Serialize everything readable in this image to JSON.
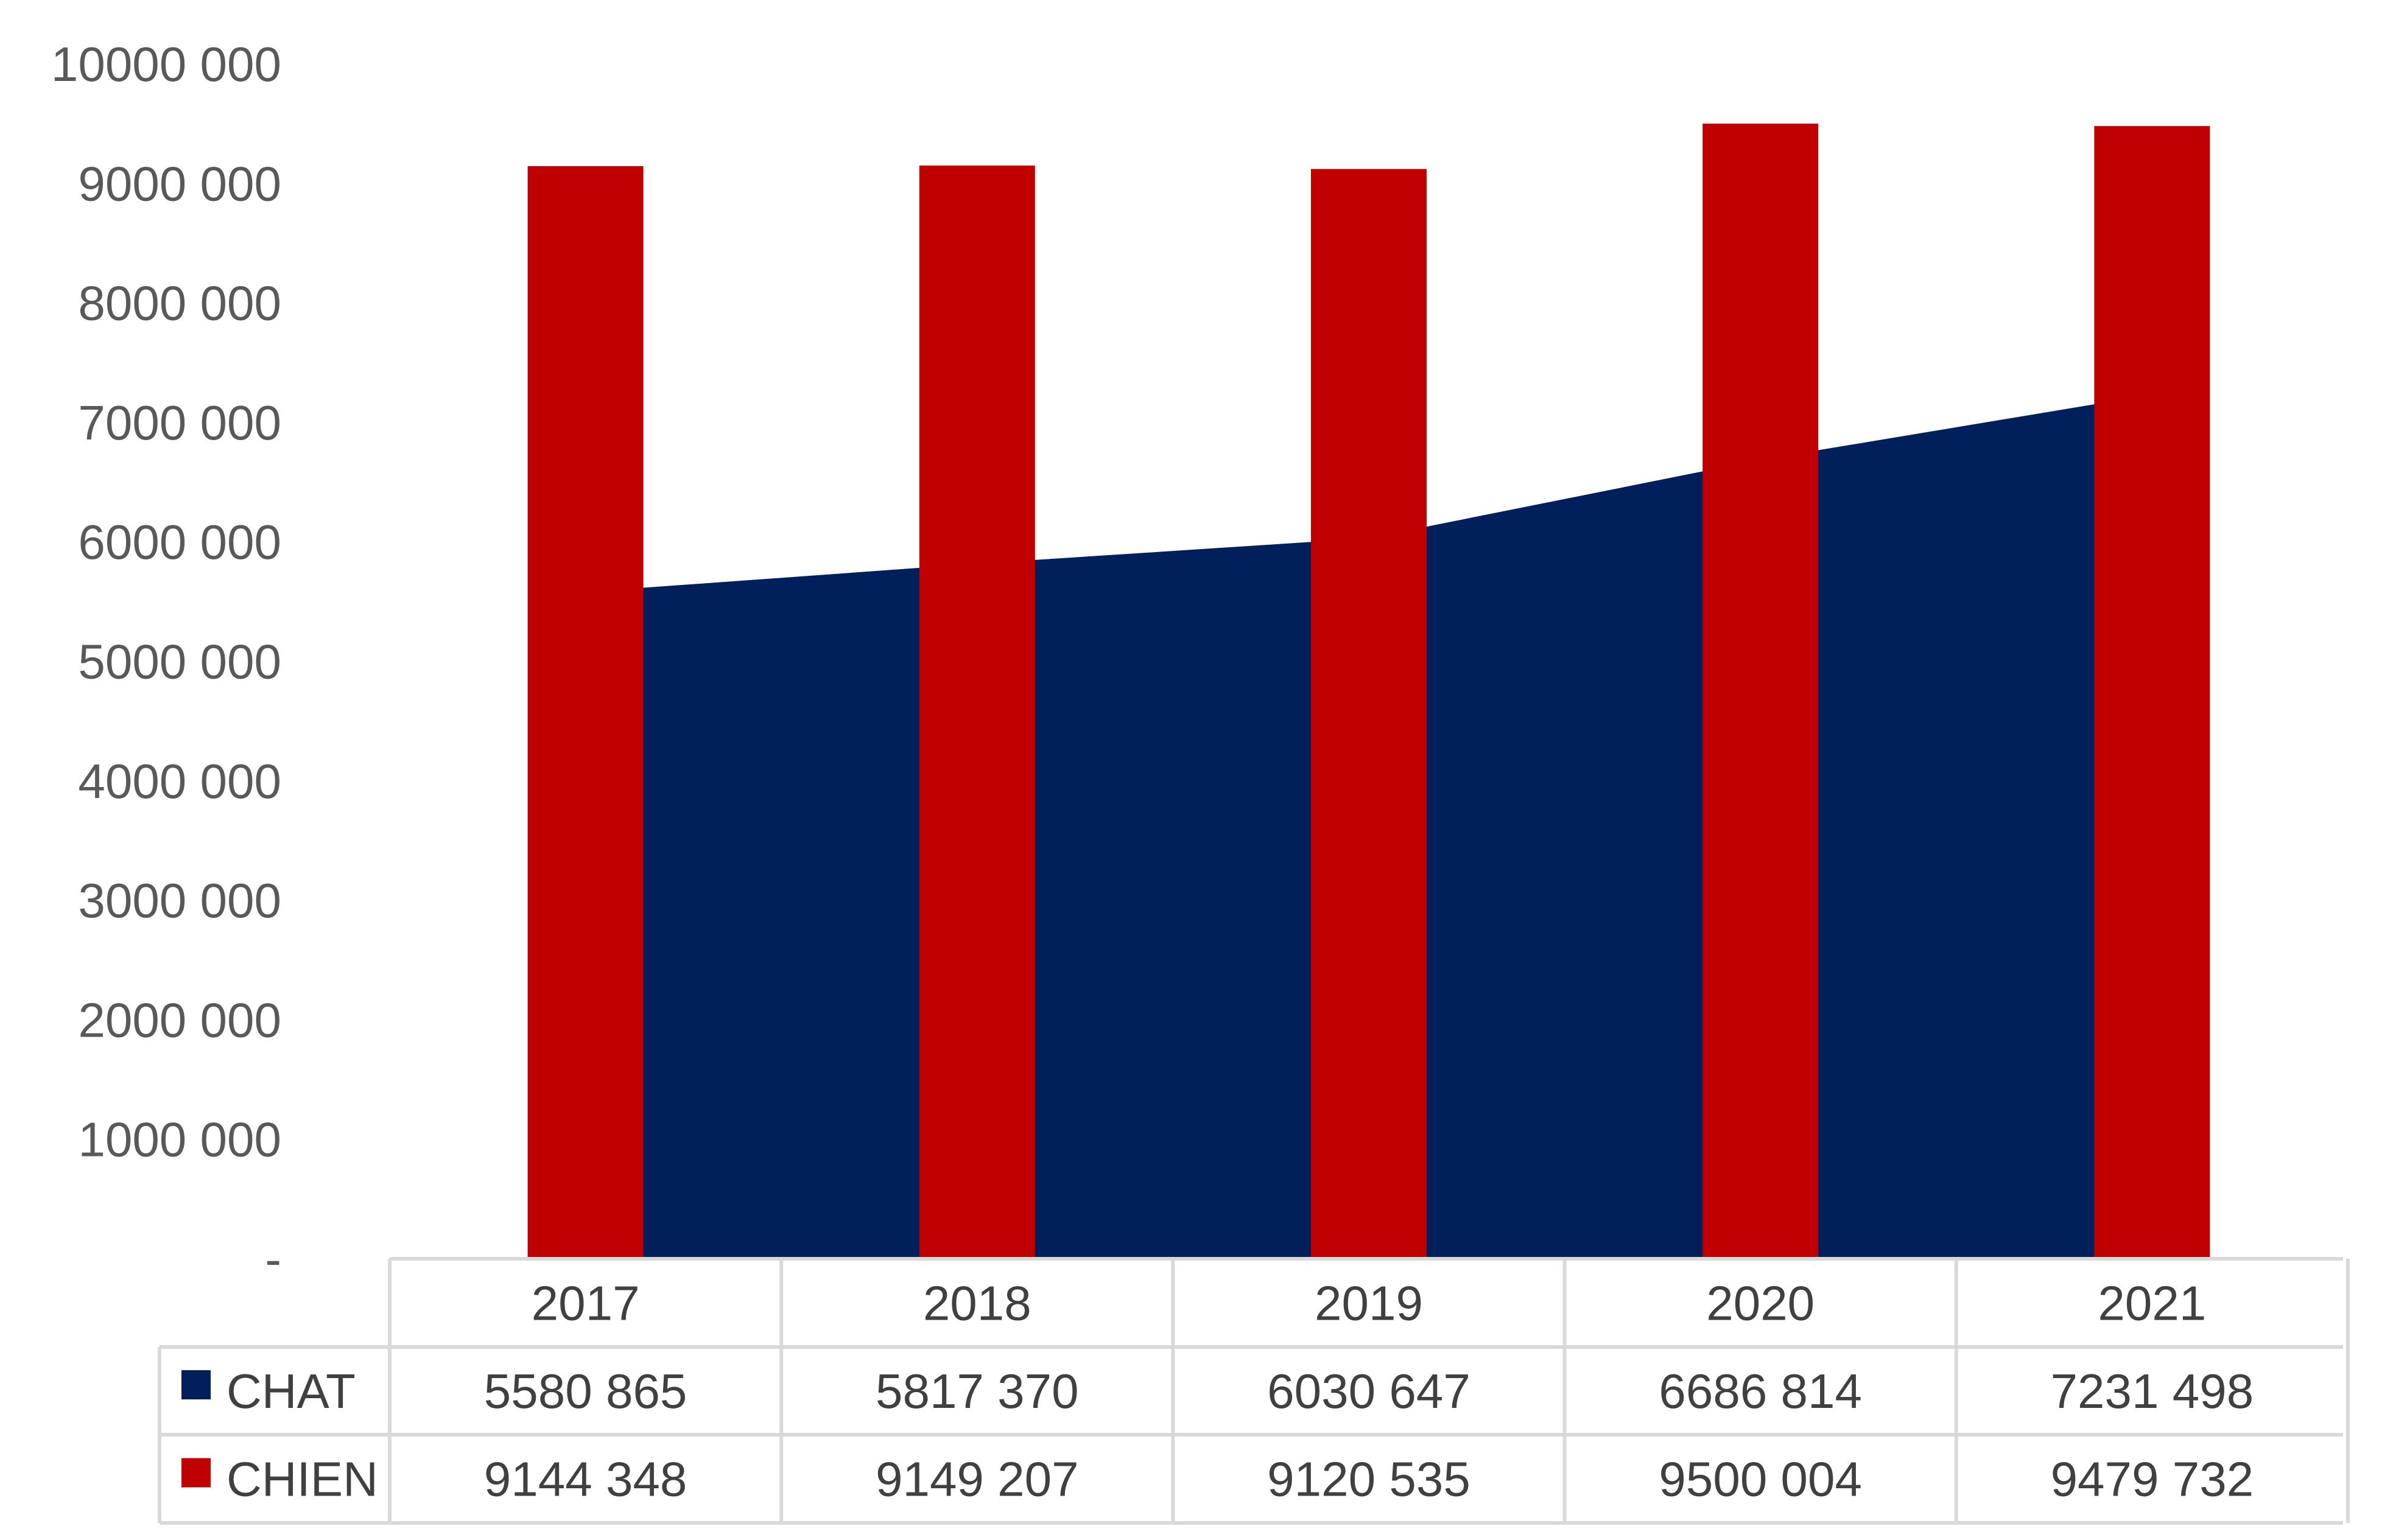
{
  "chart_data": {
    "type": "bar",
    "categories": [
      "2017",
      "2018",
      "2019",
      "2020",
      "2021"
    ],
    "series": [
      {
        "name": "CHAT",
        "type": "area",
        "color": "#001f5b",
        "values": [
          5580865,
          5817370,
          6030647,
          6686814,
          7231498
        ],
        "labels": [
          "5580 865",
          "5817 370",
          "6030 647",
          "6686 814",
          "7231 498"
        ]
      },
      {
        "name": "CHIEN",
        "type": "bar",
        "color": "#c00000",
        "values": [
          9144348,
          9149207,
          9120535,
          9500004,
          9479732
        ],
        "labels": [
          "9144 348",
          "9149 207",
          "9120 535",
          "9500 004",
          "9479 732"
        ]
      }
    ],
    "yaxis": {
      "min": 0,
      "max": 10000000,
      "tick_labels": [
        "-",
        "1000 000",
        "2000 000",
        "3000 000",
        "4000 000",
        "5000 000",
        "6000 000",
        "7000 000",
        "8000 000",
        "9000 000",
        "10000 000"
      ]
    },
    "data_table": true,
    "grid": false,
    "legend": "in-data-table"
  }
}
